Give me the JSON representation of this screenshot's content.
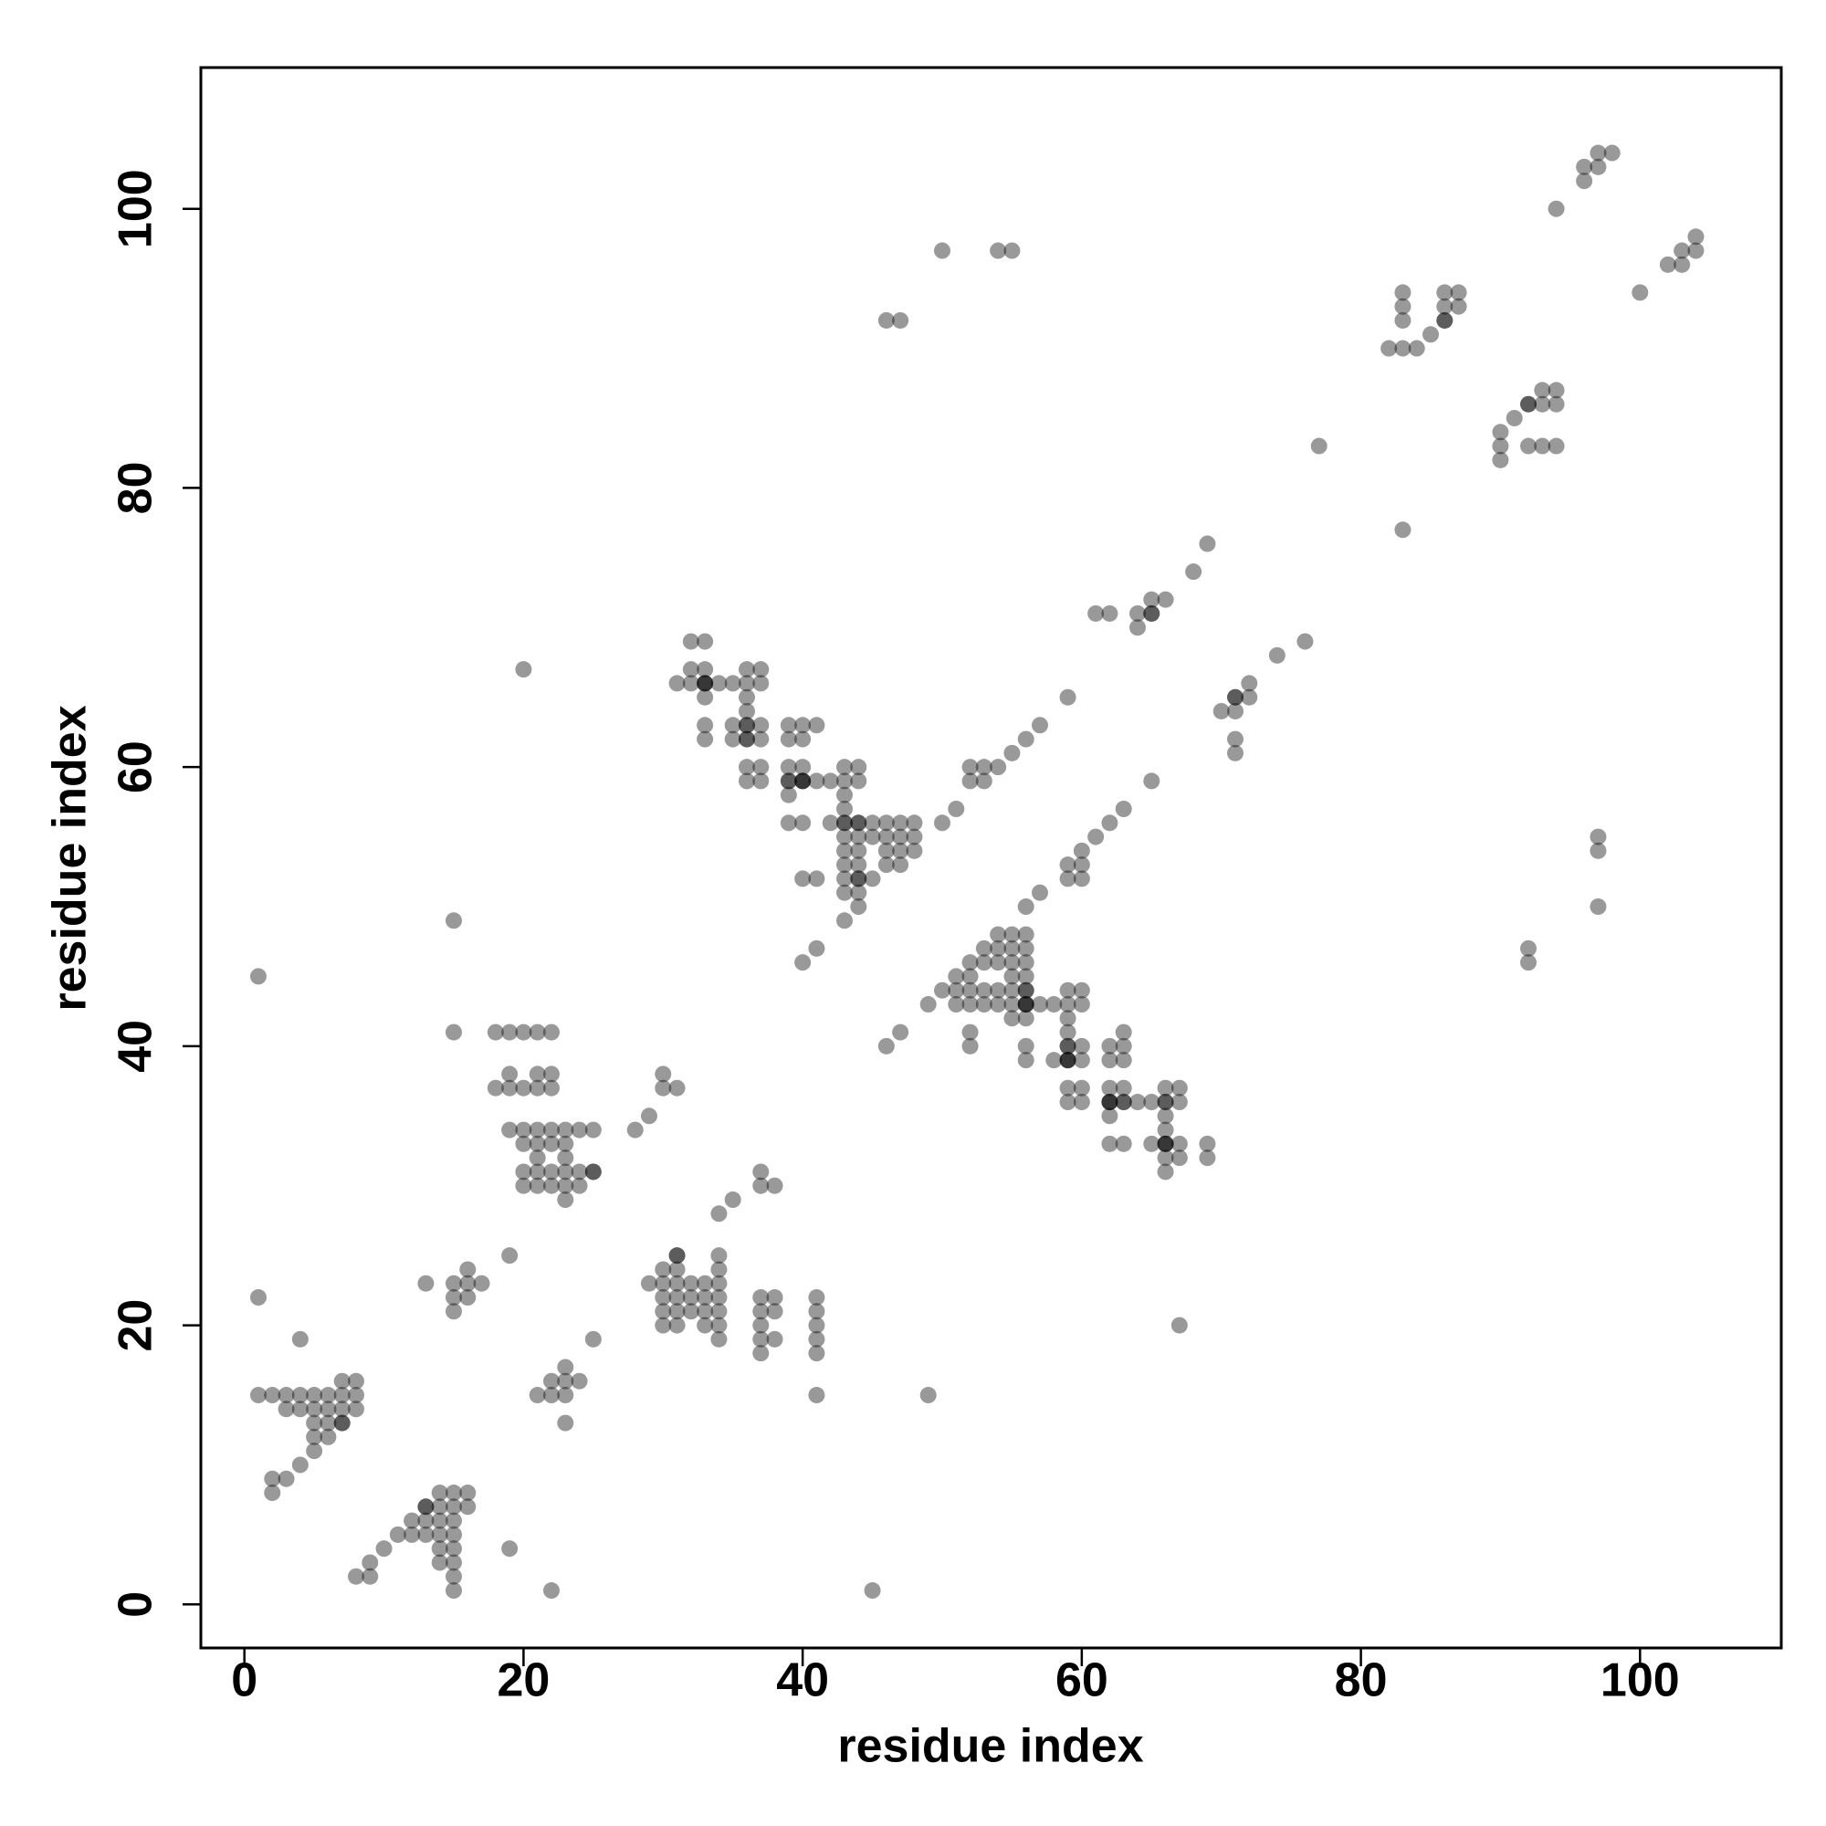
{
  "chart_data": {
    "type": "scatter",
    "xlabel": "residue index",
    "ylabel": "residue index",
    "x": [
      1,
      2,
      3,
      3,
      4,
      4,
      5,
      5,
      5,
      5,
      5,
      6,
      6,
      6,
      6,
      7,
      7,
      7,
      7,
      8,
      8,
      8,
      4,
      1,
      2,
      2,
      3,
      4,
      8,
      9,
      9,
      10,
      11,
      12,
      12,
      13,
      13,
      13,
      14,
      14,
      14,
      14,
      14,
      14,
      15,
      15,
      15,
      15,
      15,
      15,
      15,
      15,
      16,
      16,
      19,
      22,
      13,
      15,
      15,
      15,
      16,
      16,
      16,
      17,
      19,
      1,
      15,
      15,
      18,
      19,
      20,
      21,
      22,
      18,
      19,
      19,
      20,
      21,
      21,
      22,
      22,
      19,
      20,
      20,
      21,
      21,
      21,
      21,
      21,
      20,
      20,
      22,
      22,
      22,
      22,
      23,
      23,
      23,
      23,
      23,
      23,
      24,
      24,
      24,
      25,
      25,
      20,
      21,
      22,
      22,
      23,
      23,
      23,
      23,
      24,
      25,
      28,
      29,
      30,
      30,
      31,
      29,
      30,
      30,
      30,
      30,
      30,
      31,
      31,
      31,
      31,
      31,
      31,
      32,
      32,
      32,
      33,
      33,
      33,
      33,
      34,
      34,
      34,
      34,
      34,
      34,
      34,
      37,
      37,
      37,
      37,
      37,
      38,
      38,
      38,
      41,
      41,
      41,
      41,
      41,
      41,
      34,
      35,
      37,
      37,
      38,
      45,
      49,
      67,
      32,
      33,
      31,
      32,
      32,
      33,
      33,
      33,
      33,
      33,
      34,
      35,
      35,
      35,
      36,
      36,
      36,
      36,
      36,
      36,
      36,
      36,
      37,
      37,
      37,
      37,
      37,
      37,
      39,
      39,
      39,
      39,
      39,
      39,
      40,
      40,
      40,
      40,
      40,
      40,
      41,
      41,
      41,
      42,
      42,
      43,
      43,
      43,
      43,
      43,
      43,
      43,
      43,
      43,
      43,
      44,
      44,
      44,
      44,
      44,
      44,
      44,
      44,
      44,
      45,
      45,
      45,
      46,
      46,
      46,
      46,
      47,
      47,
      47,
      47,
      48,
      48,
      48,
      43,
      40,
      41,
      50,
      51,
      52,
      52,
      53,
      53,
      54,
      55,
      56,
      57,
      59,
      61,
      62,
      64,
      64,
      65,
      65,
      66,
      68,
      69,
      46,
      47,
      49,
      50,
      51,
      51,
      51,
      52,
      52,
      52,
      52,
      52,
      52,
      53,
      53,
      53,
      53,
      54,
      54,
      54,
      54,
      54,
      55,
      55,
      55,
      55,
      55,
      55,
      55,
      56,
      56,
      56,
      56,
      56,
      56,
      56,
      56,
      56,
      57,
      58,
      58,
      59,
      59,
      59,
      59,
      59,
      59,
      59,
      59,
      60,
      60,
      60,
      60,
      60,
      60,
      62,
      62,
      62,
      62,
      62,
      62,
      63,
      63,
      63,
      63,
      63,
      63,
      64,
      65,
      65,
      66,
      66,
      66,
      66,
      66,
      66,
      66,
      67,
      67,
      67,
      67,
      69,
      69,
      56,
      57,
      59,
      59,
      60,
      60,
      60,
      61,
      62,
      63,
      65,
      70,
      71,
      71,
      71,
      71,
      72,
      72,
      74,
      76,
      77,
      83,
      82,
      83,
      84,
      83,
      83,
      83,
      85,
      86,
      86,
      86,
      87,
      87,
      90,
      90,
      90,
      91,
      92,
      92,
      93,
      93,
      93,
      94,
      94,
      94,
      94,
      96,
      96,
      97,
      97,
      98,
      100,
      102,
      103,
      103,
      104,
      104,
      97,
      97,
      97,
      92,
      92,
      50,
      54,
      55,
      46,
      47,
      33,
      36,
      36,
      39,
      40,
      43,
      44,
      44,
      56,
      56,
      59,
      59,
      62,
      63,
      66,
      66,
      92,
      86,
      65,
      31,
      7,
      13,
      71,
      25,
      33,
      40,
      62,
      66,
      59,
      56
    ],
    "y": [
      15,
      15,
      15,
      14,
      15,
      14,
      15,
      14,
      13,
      12,
      11,
      15,
      14,
      13,
      12,
      16,
      15,
      14,
      13,
      16,
      15,
      14,
      19,
      22,
      9,
      8,
      9,
      10,
      2,
      3,
      2,
      4,
      5,
      5,
      6,
      5,
      6,
      7,
      8,
      7,
      6,
      5,
      4,
      3,
      8,
      7,
      6,
      5,
      4,
      3,
      2,
      1,
      8,
      7,
      4,
      1,
      23,
      23,
      22,
      21,
      24,
      23,
      22,
      23,
      25,
      45,
      49,
      41,
      41,
      41,
      41,
      41,
      41,
      37,
      38,
      37,
      37,
      38,
      37,
      38,
      37,
      34,
      34,
      33,
      34,
      33,
      32,
      31,
      30,
      31,
      30,
      34,
      33,
      31,
      30,
      34,
      33,
      32,
      31,
      30,
      29,
      34,
      31,
      30,
      34,
      31,
      67,
      15,
      16,
      15,
      17,
      16,
      15,
      13,
      16,
      19,
      34,
      35,
      38,
      37,
      37,
      23,
      24,
      23,
      22,
      21,
      20,
      25,
      24,
      23,
      22,
      21,
      20,
      23,
      22,
      21,
      23,
      22,
      21,
      20,
      25,
      24,
      23,
      22,
      21,
      20,
      19,
      22,
      21,
      20,
      19,
      18,
      22,
      21,
      19,
      22,
      21,
      20,
      19,
      18,
      15,
      28,
      29,
      31,
      30,
      30,
      1,
      15,
      20,
      69,
      69,
      66,
      67,
      66,
      67,
      66,
      65,
      63,
      62,
      66,
      66,
      63,
      62,
      67,
      66,
      65,
      64,
      63,
      62,
      60,
      59,
      67,
      66,
      63,
      62,
      60,
      59,
      63,
      62,
      60,
      59,
      58,
      56,
      63,
      62,
      60,
      59,
      56,
      52,
      63,
      59,
      52,
      59,
      56,
      60,
      59,
      58,
      57,
      56,
      55,
      54,
      53,
      52,
      51,
      60,
      59,
      56,
      55,
      54,
      53,
      52,
      51,
      50,
      56,
      55,
      52,
      56,
      55,
      54,
      53,
      56,
      55,
      54,
      53,
      56,
      55,
      54,
      49,
      46,
      47,
      56,
      57,
      60,
      59,
      60,
      59,
      60,
      61,
      62,
      63,
      65,
      71,
      71,
      71,
      70,
      72,
      71,
      72,
      74,
      76,
      40,
      41,
      43,
      44,
      45,
      44,
      43,
      46,
      45,
      44,
      43,
      41,
      40,
      47,
      46,
      44,
      43,
      48,
      47,
      46,
      44,
      43,
      48,
      47,
      46,
      45,
      44,
      43,
      42,
      48,
      47,
      46,
      45,
      44,
      43,
      42,
      40,
      39,
      43,
      43,
      39,
      44,
      43,
      42,
      41,
      40,
      39,
      37,
      36,
      44,
      43,
      40,
      39,
      37,
      36,
      40,
      39,
      37,
      36,
      35,
      33,
      41,
      40,
      39,
      37,
      36,
      33,
      36,
      36,
      33,
      37,
      36,
      35,
      34,
      33,
      32,
      31,
      37,
      36,
      33,
      32,
      33,
      32,
      50,
      51,
      53,
      52,
      54,
      53,
      52,
      55,
      56,
      57,
      59,
      64,
      65,
      64,
      62,
      61,
      66,
      65,
      68,
      69,
      83,
      77,
      90,
      90,
      90,
      94,
      93,
      92,
      91,
      94,
      93,
      92,
      94,
      93,
      84,
      83,
      82,
      85,
      86,
      83,
      87,
      86,
      83,
      87,
      86,
      83,
      100,
      103,
      102,
      104,
      103,
      104,
      94,
      96,
      97,
      96,
      98,
      97,
      55,
      54,
      50,
      47,
      46,
      97,
      97,
      97,
      92,
      92,
      66,
      63,
      62,
      59,
      59,
      56,
      56,
      52,
      44,
      43,
      40,
      39,
      36,
      36,
      33,
      36,
      86,
      92,
      71,
      25,
      13,
      7,
      65,
      31,
      66,
      59,
      36,
      33,
      39,
      43
    ],
    "color": "#000000",
    "opacity": 0.4,
    "xlim": [
      -3.12,
      110.12
    ],
    "ylim": [
      -3.12,
      110.12
    ],
    "xticks": [
      0,
      20,
      40,
      60,
      80,
      100
    ],
    "yticks": [
      0,
      20,
      40,
      60,
      80,
      100
    ],
    "grid": false
  }
}
